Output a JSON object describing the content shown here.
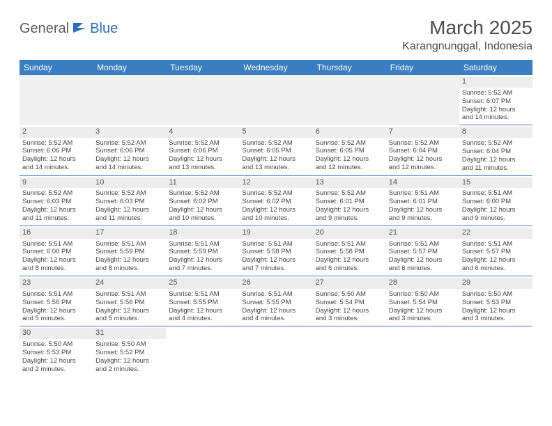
{
  "logo": {
    "dark": "General",
    "blue": "Blue"
  },
  "title": "March 2025",
  "location": "Karangnunggal, Indonesia",
  "weekdays": [
    "Sunday",
    "Monday",
    "Tuesday",
    "Wednesday",
    "Thursday",
    "Friday",
    "Saturday"
  ],
  "header_bg": "#3a7ec2",
  "header_fg": "#ffffff",
  "daynum_bg": "#ededed",
  "border_color": "#3a7ec2",
  "weeks": [
    [
      null,
      null,
      null,
      null,
      null,
      null,
      {
        "n": "1",
        "sr": "Sunrise: 5:52 AM",
        "ss": "Sunset: 6:07 PM",
        "dl1": "Daylight: 12 hours",
        "dl2": "and 14 minutes."
      }
    ],
    [
      {
        "n": "2",
        "sr": "Sunrise: 5:52 AM",
        "ss": "Sunset: 6:06 PM",
        "dl1": "Daylight: 12 hours",
        "dl2": "and 14 minutes."
      },
      {
        "n": "3",
        "sr": "Sunrise: 5:52 AM",
        "ss": "Sunset: 6:06 PM",
        "dl1": "Daylight: 12 hours",
        "dl2": "and 14 minutes."
      },
      {
        "n": "4",
        "sr": "Sunrise: 5:52 AM",
        "ss": "Sunset: 6:06 PM",
        "dl1": "Daylight: 12 hours",
        "dl2": "and 13 minutes."
      },
      {
        "n": "5",
        "sr": "Sunrise: 5:52 AM",
        "ss": "Sunset: 6:05 PM",
        "dl1": "Daylight: 12 hours",
        "dl2": "and 13 minutes."
      },
      {
        "n": "6",
        "sr": "Sunrise: 5:52 AM",
        "ss": "Sunset: 6:05 PM",
        "dl1": "Daylight: 12 hours",
        "dl2": "and 12 minutes."
      },
      {
        "n": "7",
        "sr": "Sunrise: 5:52 AM",
        "ss": "Sunset: 6:04 PM",
        "dl1": "Daylight: 12 hours",
        "dl2": "and 12 minutes."
      },
      {
        "n": "8",
        "sr": "Sunrise: 5:52 AM",
        "ss": "Sunset: 6:04 PM",
        "dl1": "Daylight: 12 hours",
        "dl2": "and 11 minutes."
      }
    ],
    [
      {
        "n": "9",
        "sr": "Sunrise: 5:52 AM",
        "ss": "Sunset: 6:03 PM",
        "dl1": "Daylight: 12 hours",
        "dl2": "and 11 minutes."
      },
      {
        "n": "10",
        "sr": "Sunrise: 5:52 AM",
        "ss": "Sunset: 6:03 PM",
        "dl1": "Daylight: 12 hours",
        "dl2": "and 11 minutes."
      },
      {
        "n": "11",
        "sr": "Sunrise: 5:52 AM",
        "ss": "Sunset: 6:02 PM",
        "dl1": "Daylight: 12 hours",
        "dl2": "and 10 minutes."
      },
      {
        "n": "12",
        "sr": "Sunrise: 5:52 AM",
        "ss": "Sunset: 6:02 PM",
        "dl1": "Daylight: 12 hours",
        "dl2": "and 10 minutes."
      },
      {
        "n": "13",
        "sr": "Sunrise: 5:52 AM",
        "ss": "Sunset: 6:01 PM",
        "dl1": "Daylight: 12 hours",
        "dl2": "and 9 minutes."
      },
      {
        "n": "14",
        "sr": "Sunrise: 5:51 AM",
        "ss": "Sunset: 6:01 PM",
        "dl1": "Daylight: 12 hours",
        "dl2": "and 9 minutes."
      },
      {
        "n": "15",
        "sr": "Sunrise: 5:51 AM",
        "ss": "Sunset: 6:00 PM",
        "dl1": "Daylight: 12 hours",
        "dl2": "and 9 minutes."
      }
    ],
    [
      {
        "n": "16",
        "sr": "Sunrise: 5:51 AM",
        "ss": "Sunset: 6:00 PM",
        "dl1": "Daylight: 12 hours",
        "dl2": "and 8 minutes."
      },
      {
        "n": "17",
        "sr": "Sunrise: 5:51 AM",
        "ss": "Sunset: 5:59 PM",
        "dl1": "Daylight: 12 hours",
        "dl2": "and 8 minutes."
      },
      {
        "n": "18",
        "sr": "Sunrise: 5:51 AM",
        "ss": "Sunset: 5:59 PM",
        "dl1": "Daylight: 12 hours",
        "dl2": "and 7 minutes."
      },
      {
        "n": "19",
        "sr": "Sunrise: 5:51 AM",
        "ss": "Sunset: 5:58 PM",
        "dl1": "Daylight: 12 hours",
        "dl2": "and 7 minutes."
      },
      {
        "n": "20",
        "sr": "Sunrise: 5:51 AM",
        "ss": "Sunset: 5:58 PM",
        "dl1": "Daylight: 12 hours",
        "dl2": "and 6 minutes."
      },
      {
        "n": "21",
        "sr": "Sunrise: 5:51 AM",
        "ss": "Sunset: 5:57 PM",
        "dl1": "Daylight: 12 hours",
        "dl2": "and 6 minutes."
      },
      {
        "n": "22",
        "sr": "Sunrise: 5:51 AM",
        "ss": "Sunset: 5:57 PM",
        "dl1": "Daylight: 12 hours",
        "dl2": "and 6 minutes."
      }
    ],
    [
      {
        "n": "23",
        "sr": "Sunrise: 5:51 AM",
        "ss": "Sunset: 5:56 PM",
        "dl1": "Daylight: 12 hours",
        "dl2": "and 5 minutes."
      },
      {
        "n": "24",
        "sr": "Sunrise: 5:51 AM",
        "ss": "Sunset: 5:56 PM",
        "dl1": "Daylight: 12 hours",
        "dl2": "and 5 minutes."
      },
      {
        "n": "25",
        "sr": "Sunrise: 5:51 AM",
        "ss": "Sunset: 5:55 PM",
        "dl1": "Daylight: 12 hours",
        "dl2": "and 4 minutes."
      },
      {
        "n": "26",
        "sr": "Sunrise: 5:51 AM",
        "ss": "Sunset: 5:55 PM",
        "dl1": "Daylight: 12 hours",
        "dl2": "and 4 minutes."
      },
      {
        "n": "27",
        "sr": "Sunrise: 5:50 AM",
        "ss": "Sunset: 5:54 PM",
        "dl1": "Daylight: 12 hours",
        "dl2": "and 3 minutes."
      },
      {
        "n": "28",
        "sr": "Sunrise: 5:50 AM",
        "ss": "Sunset: 5:54 PM",
        "dl1": "Daylight: 12 hours",
        "dl2": "and 3 minutes."
      },
      {
        "n": "29",
        "sr": "Sunrise: 5:50 AM",
        "ss": "Sunset: 5:53 PM",
        "dl1": "Daylight: 12 hours",
        "dl2": "and 3 minutes."
      }
    ],
    [
      {
        "n": "30",
        "sr": "Sunrise: 5:50 AM",
        "ss": "Sunset: 5:53 PM",
        "dl1": "Daylight: 12 hours",
        "dl2": "and 2 minutes."
      },
      {
        "n": "31",
        "sr": "Sunrise: 5:50 AM",
        "ss": "Sunset: 5:52 PM",
        "dl1": "Daylight: 12 hours",
        "dl2": "and 2 minutes."
      },
      null,
      null,
      null,
      null,
      null
    ]
  ]
}
